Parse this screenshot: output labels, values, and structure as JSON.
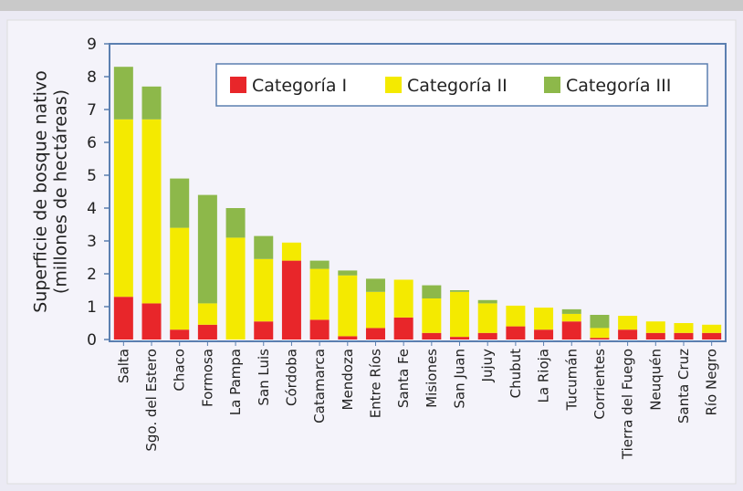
{
  "chart_data": {
    "type": "stacked_bar",
    "ylabel": "Superficie de bosque nativo\n(millones de hectáreas)",
    "categories": [
      "Salta",
      "Sgo. del Estero",
      "Chaco",
      "Formosa",
      "La Pampa",
      "San Luis",
      "Córdoba",
      "Catamarca",
      "Mendoza",
      "Entre Ríos",
      "Santa Fe",
      "Misiones",
      "San Juan",
      "Jujuy",
      "Chubut",
      "La Rioja",
      "Tucumán",
      "Corrientes",
      "Tierra del Fuego",
      "Neuquén",
      "Santa Cruz",
      "Río Negro"
    ],
    "series": [
      {
        "name": "Categoría I",
        "color": "#e8262a",
        "values": [
          1.3,
          1.1,
          0.3,
          0.45,
          0,
          0.55,
          2.4,
          0.6,
          0.1,
          0.35,
          0.67,
          0.2,
          0.08,
          0.2,
          0.4,
          0.3,
          0.55,
          0.05,
          0.3,
          0.2,
          0.2,
          0.2
        ]
      },
      {
        "name": "Categoría II",
        "color": "#f4ea00",
        "values": [
          5.4,
          5.6,
          3.1,
          0.65,
          3.1,
          1.9,
          0.55,
          1.55,
          1.85,
          1.1,
          1.15,
          1.05,
          1.37,
          0.9,
          0.63,
          0.67,
          0.23,
          0.3,
          0.42,
          0.35,
          0.3,
          0.25
        ]
      },
      {
        "name": "Categoría III",
        "color": "#8db84a",
        "values": [
          1.6,
          1.0,
          1.5,
          3.3,
          0.9,
          0.7,
          0,
          0.25,
          0.15,
          0.4,
          0,
          0.4,
          0.05,
          0.1,
          0,
          0,
          0.14,
          0.4,
          0,
          0,
          0,
          0
        ]
      }
    ],
    "ylim": [
      0,
      9
    ],
    "yticks": [
      0,
      1,
      2,
      3,
      4,
      5,
      6,
      7,
      8,
      9
    ],
    "legend": "upper right"
  }
}
